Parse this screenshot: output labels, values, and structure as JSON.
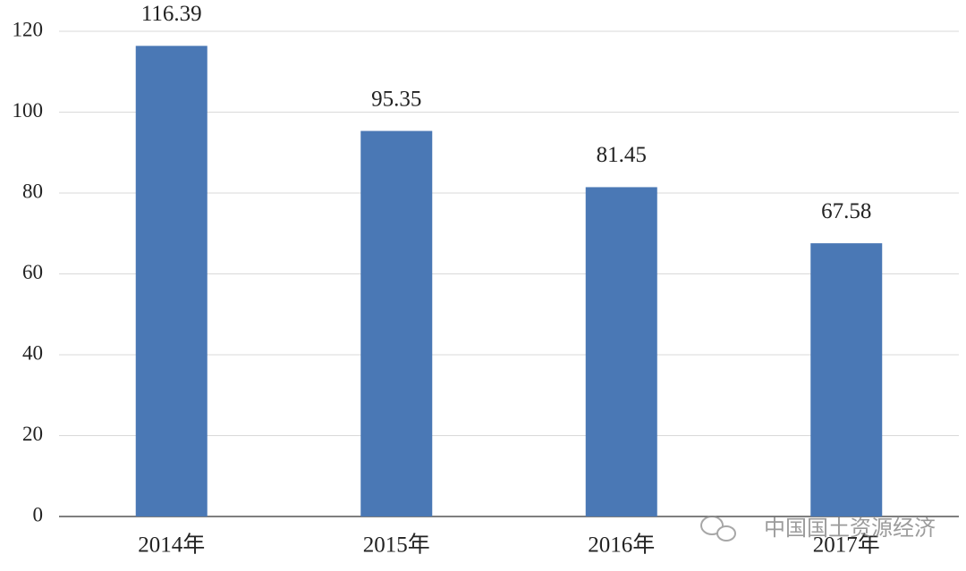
{
  "chart_data": {
    "type": "bar",
    "categories": [
      "2014年",
      "2015年",
      "2016年",
      "2017年"
    ],
    "values": [
      116.39,
      95.35,
      81.45,
      67.58
    ],
    "color": "#4a78b5",
    "ylim": [
      0,
      120
    ],
    "yticks": [
      0,
      20,
      40,
      60,
      80,
      100,
      120
    ],
    "grid": true,
    "data_labels": true
  },
  "watermark": "中国国土资源经济"
}
